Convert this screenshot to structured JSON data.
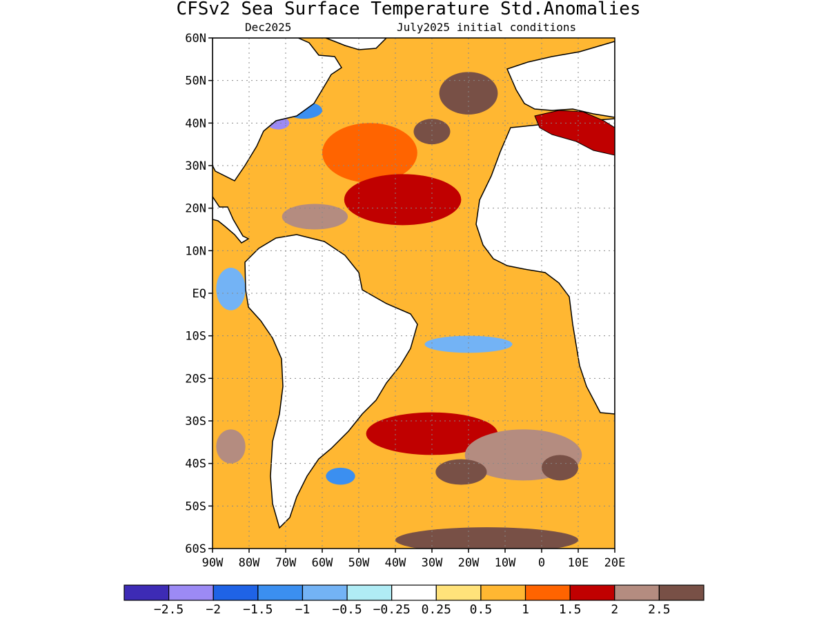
{
  "chart_data": {
    "type": "heatmap",
    "title": "CFSv2 Sea Surface Temperature Std.Anomalies",
    "subtitle_left": "Dec2025",
    "subtitle_right": "July2025 initial conditions",
    "x_axis": {
      "range": [
        -90,
        20
      ],
      "ticks": [
        {
          "value": -90,
          "label": "90W"
        },
        {
          "value": -80,
          "label": "80W"
        },
        {
          "value": -70,
          "label": "70W"
        },
        {
          "value": -60,
          "label": "60W"
        },
        {
          "value": -50,
          "label": "50W"
        },
        {
          "value": -40,
          "label": "40W"
        },
        {
          "value": -30,
          "label": "30W"
        },
        {
          "value": -20,
          "label": "20W"
        },
        {
          "value": -10,
          "label": "10W"
        },
        {
          "value": 0,
          "label": "0"
        },
        {
          "value": 10,
          "label": "10E"
        },
        {
          "value": 20,
          "label": "20E"
        }
      ]
    },
    "y_axis": {
      "range": [
        -60,
        60
      ],
      "ticks": [
        {
          "value": 60,
          "label": "60N"
        },
        {
          "value": 50,
          "label": "50N"
        },
        {
          "value": 40,
          "label": "40N"
        },
        {
          "value": 30,
          "label": "30N"
        },
        {
          "value": 20,
          "label": "20N"
        },
        {
          "value": 10,
          "label": "10N"
        },
        {
          "value": 0,
          "label": "EQ"
        },
        {
          "value": -10,
          "label": "10S"
        },
        {
          "value": -20,
          "label": "20S"
        },
        {
          "value": -30,
          "label": "30S"
        },
        {
          "value": -40,
          "label": "40S"
        },
        {
          "value": -50,
          "label": "50S"
        },
        {
          "value": -60,
          "label": "60S"
        }
      ]
    },
    "grid": true,
    "colorbar": {
      "colors": [
        "#3d2bb5",
        "#9c8af5",
        "#1f63e6",
        "#3b8ff0",
        "#73b3f5",
        "#b0ecf5",
        "#ffffff",
        "#ffe27a",
        "#ffb732",
        "#ff6400",
        "#c00000",
        "#b48c80",
        "#785046"
      ],
      "labels": [
        "-2.5",
        "-2",
        "-1.5",
        "-1",
        "-0.5",
        "-0.25",
        "0.25",
        "0.5",
        "1",
        "1.5",
        "2",
        "2.5"
      ]
    },
    "anomaly_regions": [
      {
        "lon": -47,
        "lat": 33,
        "rx": 13,
        "ry": 7,
        "level": 9
      },
      {
        "lon": -38,
        "lat": 22,
        "rx": 16,
        "ry": 6,
        "level": 10
      },
      {
        "lon": -62,
        "lat": 18,
        "rx": 9,
        "ry": 3,
        "level": 11
      },
      {
        "lon": -30,
        "lat": 38,
        "rx": 5,
        "ry": 3,
        "level": 12
      },
      {
        "lon": -20,
        "lat": 47,
        "rx": 8,
        "ry": 5,
        "level": 12
      },
      {
        "lon": -72,
        "lat": 40,
        "rx": 3,
        "ry": 1.5,
        "level": 1
      },
      {
        "lon": -65,
        "lat": 43,
        "rx": 5,
        "ry": 2,
        "level": 3
      },
      {
        "lon": -30,
        "lat": -33,
        "rx": 18,
        "ry": 5,
        "level": 10
      },
      {
        "lon": -5,
        "lat": -38,
        "rx": 16,
        "ry": 6,
        "level": 11
      },
      {
        "lon": -22,
        "lat": -42,
        "rx": 7,
        "ry": 3,
        "level": 12
      },
      {
        "lon": 5,
        "lat": -41,
        "rx": 5,
        "ry": 3,
        "level": 12
      },
      {
        "lon": -15,
        "lat": -58,
        "rx": 25,
        "ry": 3,
        "level": 12
      },
      {
        "lon": -85,
        "lat": -36,
        "rx": 4,
        "ry": 4,
        "level": 11
      },
      {
        "lon": -55,
        "lat": -43,
        "rx": 4,
        "ry": 2,
        "level": 3
      },
      {
        "lon": -20,
        "lat": -12,
        "rx": 12,
        "ry": 2,
        "level": 4
      },
      {
        "lon": -85,
        "lat": 1,
        "rx": 4,
        "ry": 5,
        "level": 4
      }
    ]
  }
}
